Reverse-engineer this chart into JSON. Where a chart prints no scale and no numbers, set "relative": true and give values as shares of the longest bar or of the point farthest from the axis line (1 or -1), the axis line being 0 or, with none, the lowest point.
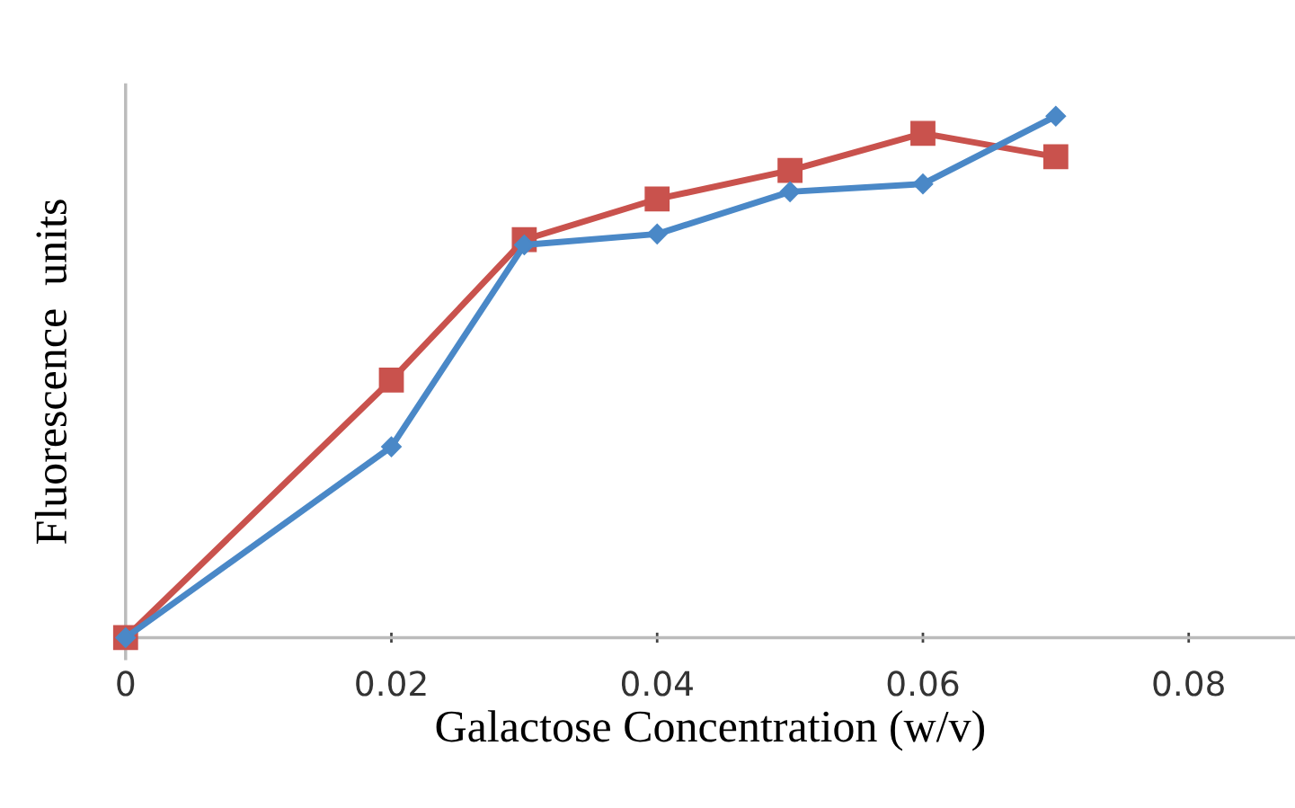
{
  "chart_data": {
    "type": "line",
    "xlabel": "Galactose Concentration (w/v)",
    "ylabel": "Fluorescence  units",
    "relative": true,
    "x": [
      0,
      0.02,
      0.03,
      0.04,
      0.05,
      0.06,
      0.07
    ],
    "xlim": [
      0,
      0.088
    ],
    "xticks": [
      0,
      0.02,
      0.04,
      0.06,
      0.08
    ],
    "grid": false,
    "legend": false,
    "line_style": "solid",
    "series": [
      {
        "color": "#4a88c7",
        "marker": "diamond",
        "values": [
          0,
          0.366,
          0.753,
          0.774,
          0.855,
          0.87,
          1
        ]
      },
      {
        "color": "#c9524d",
        "marker": "square",
        "values": [
          0,
          0.494,
          0.763,
          0.841,
          0.896,
          0.967,
          0.922
        ]
      }
    ]
  }
}
